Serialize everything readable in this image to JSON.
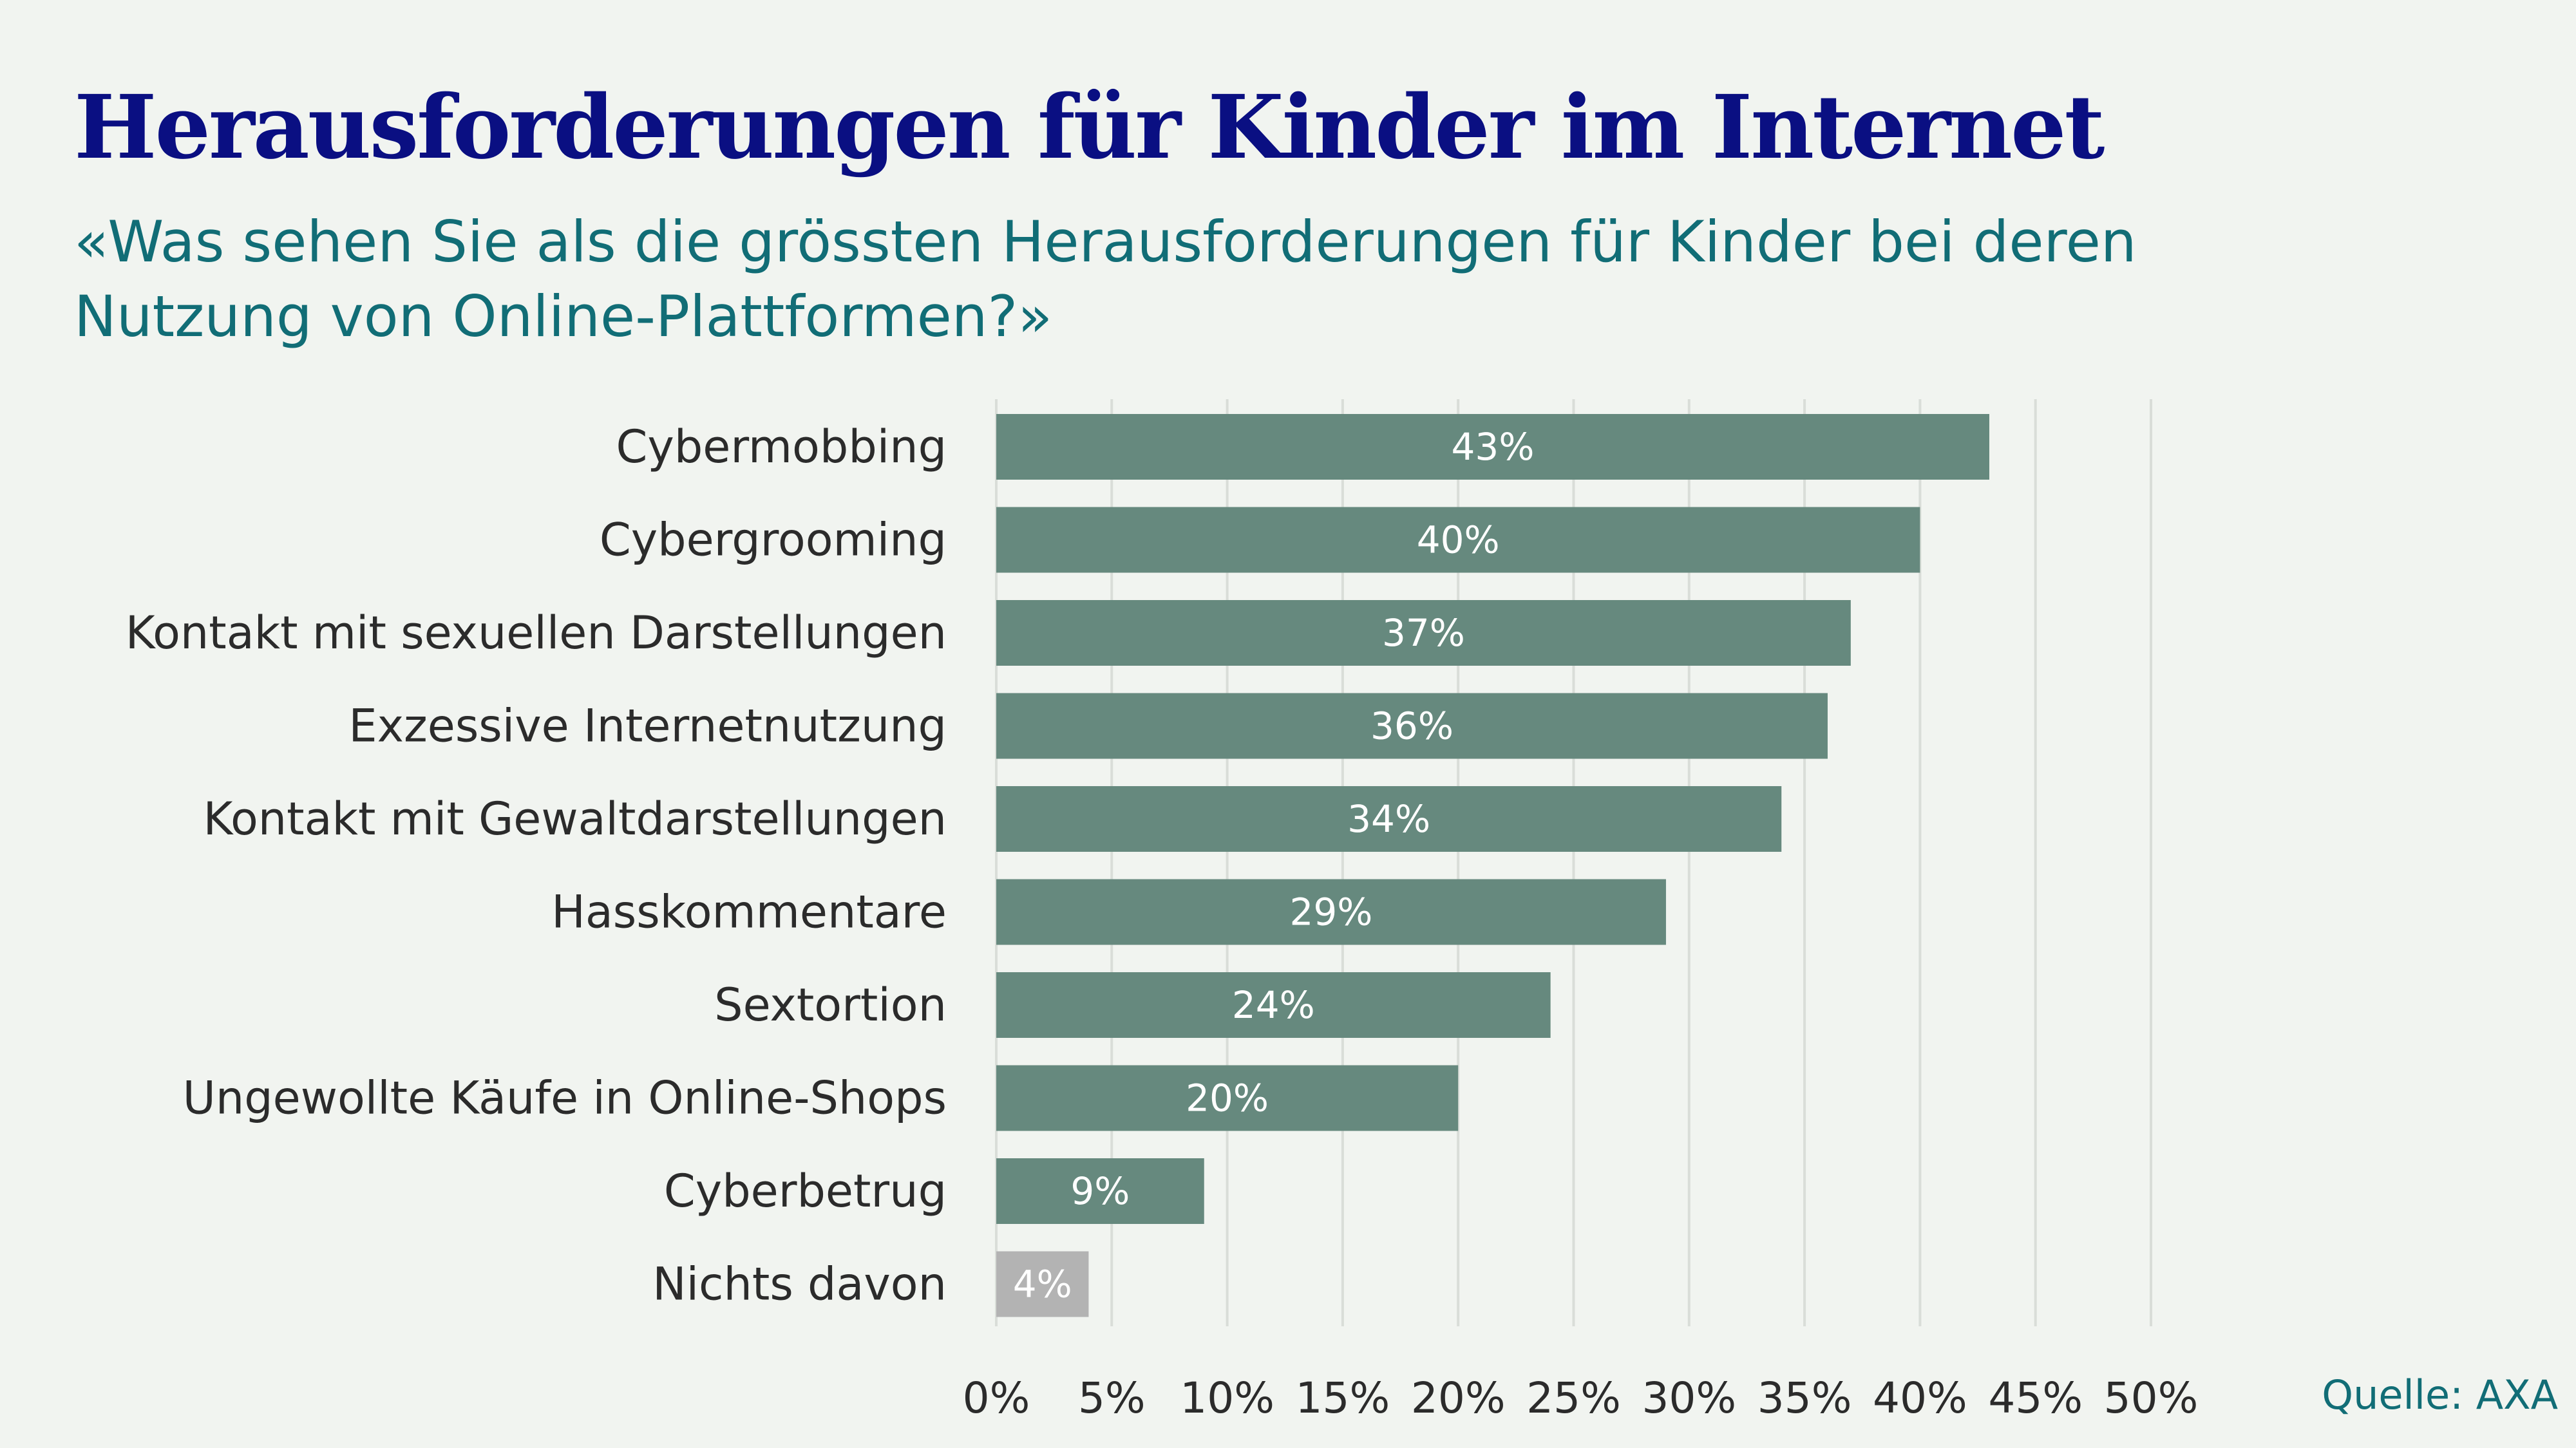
{
  "header": {
    "title": "Herausforderungen für Kinder im Internet",
    "subtitle": "«Was sehen Sie als die grössten Herausforderungen für Kinder bei deren Nutzung von Online-Plattformen?»"
  },
  "footer": {
    "source": "Quelle: AXA"
  },
  "colors": {
    "title": "#0a0f82",
    "subtitle": "#116d76",
    "bar": "#66897e",
    "bar_neutral": "#b3b3b3",
    "grid": "#d9ddd8",
    "background": "#f1f4f0"
  },
  "chart_data": {
    "type": "bar",
    "orientation": "horizontal",
    "categories": [
      "Cybermobbing",
      "Cybergrooming",
      "Kontakt mit sexuellen Darstellungen",
      "Exzessive Internetnutzung",
      "Kontakt mit Gewaltdarstellungen",
      "Hasskommentare",
      "Sextortion",
      "Ungewollte Käufe in Online-Shops",
      "Cyberbetrug",
      "Nichts davon"
    ],
    "values": [
      43,
      40,
      37,
      36,
      34,
      29,
      24,
      20,
      9,
      4
    ],
    "value_labels": [
      "43%",
      "40%",
      "37%",
      "36%",
      "34%",
      "29%",
      "24%",
      "20%",
      "9%",
      "4%"
    ],
    "highlight": [
      "main",
      "main",
      "main",
      "main",
      "main",
      "main",
      "main",
      "main",
      "main",
      "neutral"
    ],
    "xlim": [
      0,
      50
    ],
    "x_ticks": [
      0,
      5,
      10,
      15,
      20,
      25,
      30,
      35,
      40,
      45,
      50
    ],
    "x_tick_labels": [
      "0%",
      "5%",
      "10%",
      "15%",
      "20%",
      "25%",
      "30%",
      "35%",
      "40%",
      "45%",
      "50%"
    ],
    "grid": true,
    "legend": "none"
  }
}
